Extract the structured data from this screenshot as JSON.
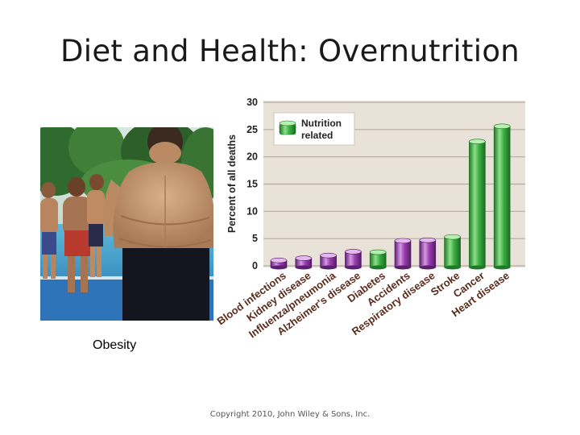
{
  "slide": {
    "title": "Diet and Health: Overnutrition",
    "caption": "Obesity",
    "footer": "Copyright 2010, John Wiley & Sons, Inc."
  },
  "chart_data": {
    "type": "bar",
    "ylabel": "Percent of all deaths",
    "ylim": [
      0,
      30
    ],
    "yticks": [
      0,
      5,
      10,
      15,
      20,
      25,
      30
    ],
    "categories": [
      "Blood infections",
      "Kidney disease",
      "Influenza/pneumonia",
      "Alzheimer's disease",
      "Diabetes",
      "Accidents",
      "Respiratory disease",
      "Stroke",
      "Cancer",
      "Heart disease"
    ],
    "values": [
      1.0,
      1.4,
      1.9,
      2.6,
      2.5,
      4.6,
      4.7,
      5.3,
      22.8,
      25.6
    ],
    "nutrition_related": [
      false,
      false,
      false,
      false,
      true,
      false,
      false,
      true,
      true,
      true
    ],
    "legend": {
      "label": "Nutrition related",
      "color": "#3cb043",
      "placement": "top-left"
    },
    "colors": {
      "nutrition": "#3cb043",
      "other": "#9b3fb0",
      "plot_bg": "#e8e2d8",
      "grid": "#b5aca0"
    },
    "grid": true
  }
}
